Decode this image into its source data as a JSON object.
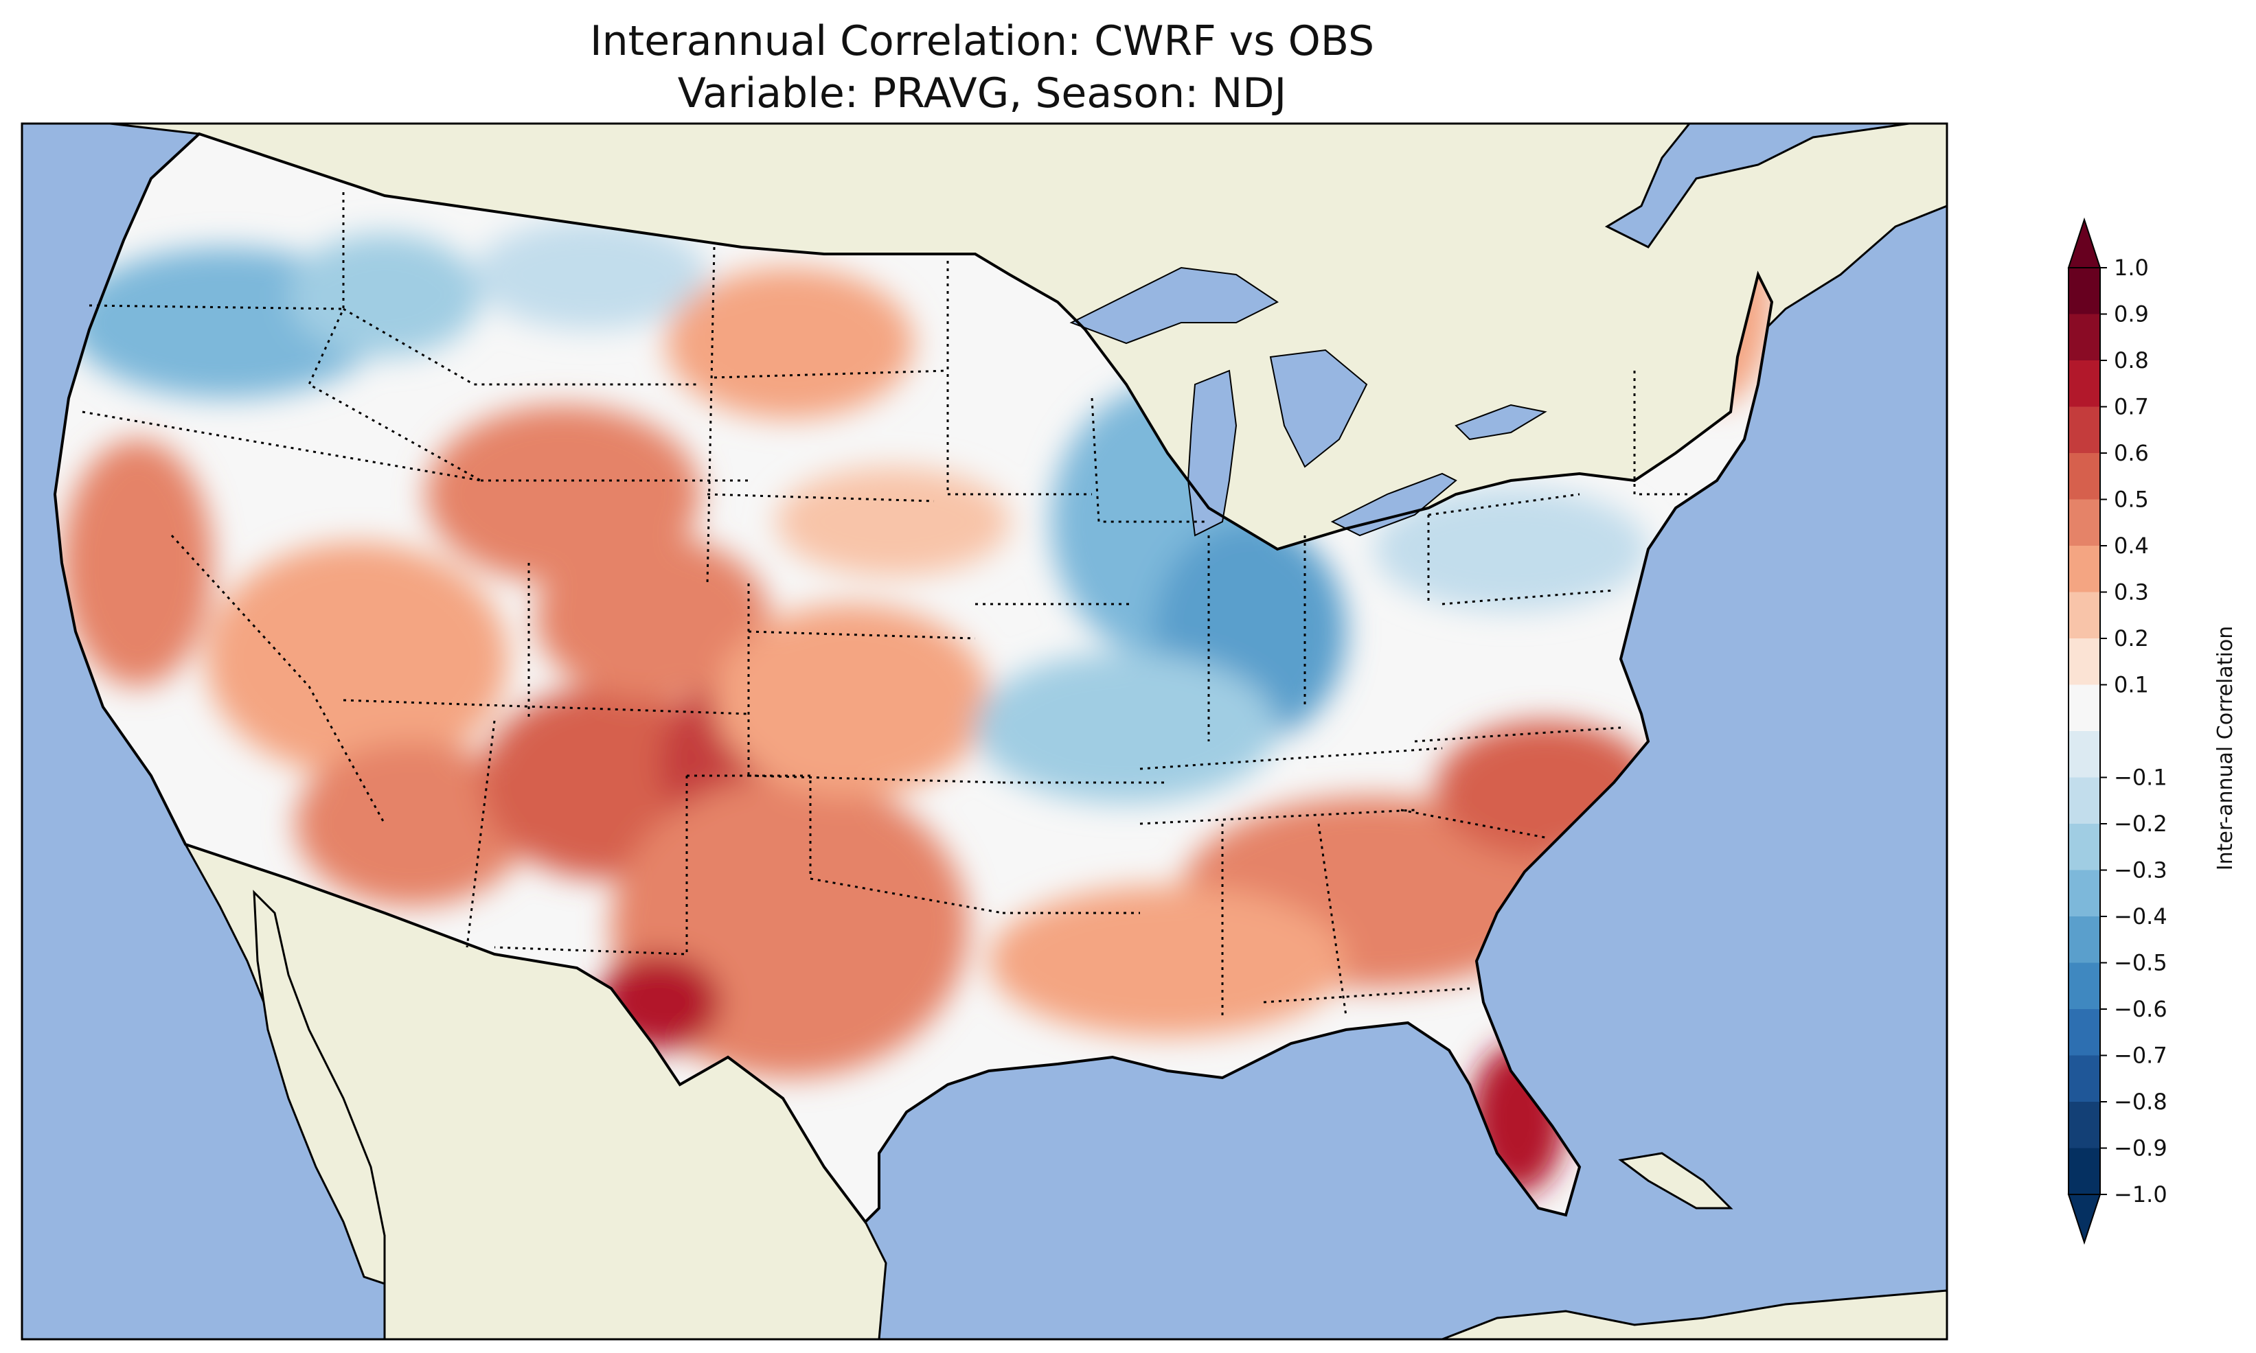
{
  "title": {
    "line1": "Interannual Correlation: CWRF vs OBS",
    "line2": "Variable: PRAVG, Season: NDJ"
  },
  "colorbar": {
    "label": "Inter-annual Correlation",
    "ticks": [
      "1.0",
      "0.9",
      "0.8",
      "0.7",
      "0.6",
      "0.5",
      "0.4",
      "0.3",
      "0.2",
      "0.1",
      "−0.1",
      "−0.2",
      "−0.3",
      "−0.4",
      "−0.5",
      "−0.6",
      "−0.7",
      "−0.8",
      "−0.9",
      "−1.0"
    ],
    "colors_top_to_bottom": [
      "#67001f",
      "#8a0b25",
      "#b2182b",
      "#c43c3c",
      "#d6604d",
      "#e58368",
      "#f4a582",
      "#f8c4a9",
      "#fbe3d4",
      "#f7f7f7",
      "#dceaf2",
      "#c2ddec",
      "#a0cde3",
      "#7db8da",
      "#5a9fcc",
      "#3f88c0",
      "#2d6fb1",
      "#1f5798",
      "#134076",
      "#053061"
    ]
  },
  "map_colors": {
    "ocean": "#97b6e1",
    "land": "#efefdb",
    "neutral": "#f7f7f7",
    "strong_positive": "#b2182b",
    "positive": "#e58368",
    "weak_positive": "#f8c4a9",
    "weak_negative": "#c2ddec",
    "negative": "#7db8da",
    "strong_negative": "#3f88c0"
  }
}
